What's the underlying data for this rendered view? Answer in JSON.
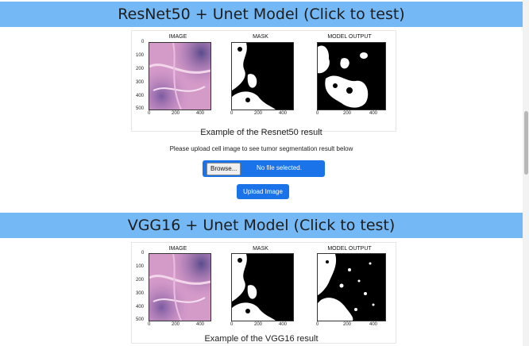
{
  "sections": [
    {
      "title": "ResNet50 + Unet Model (Click to test)",
      "panels": {
        "image_title": "IMAGE",
        "mask_title": "MASK",
        "output_title": "MODEL OUTPUT"
      },
      "yticks": [
        "0",
        "100",
        "200",
        "300",
        "400",
        "500"
      ],
      "xticks": [
        "0",
        "200",
        "400"
      ],
      "caption": "Example of the Resnet50 result"
    },
    {
      "title": "VGG16 + Unet Model (Click to test)",
      "panels": {
        "image_title": "IMAGE",
        "mask_title": "MASK",
        "output_title": "MODEL OUTPUT"
      },
      "yticks": [
        "0",
        "100",
        "200",
        "300",
        "400",
        "500"
      ],
      "xticks": [
        "0",
        "200",
        "400"
      ],
      "caption": "Example of the VGG16 result"
    }
  ],
  "upload": {
    "instruction": "Please upload cell image to see tumor segmentation result below",
    "browse_label": "Browse...",
    "file_status": "No file selected.",
    "submit_label": "Upload Image"
  },
  "colors": {
    "header_bar": "#74b9f5",
    "button_blue": "#1a73e8"
  }
}
